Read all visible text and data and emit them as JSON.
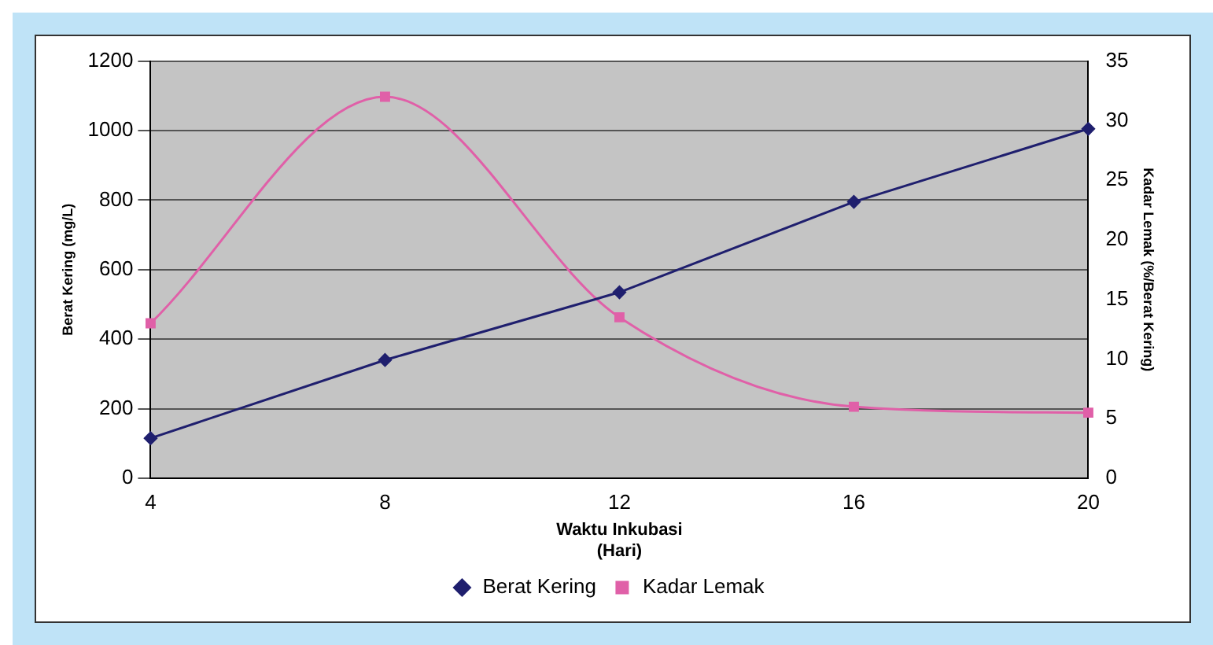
{
  "chart_data": {
    "type": "line",
    "categories": [
      "4",
      "8",
      "12",
      "16",
      "20"
    ],
    "xlabel": "Waktu Inkubasi\n(Hari)",
    "ylabel": "Berat Kering (mg/L)",
    "y2label": "Kadar Lemak (%/Berat Kering)",
    "series": [
      {
        "name": "Berat Kering",
        "color": "#1f1f6e",
        "values": [
          115,
          340,
          535,
          795,
          1005
        ],
        "marker": "diamond"
      },
      {
        "name": "Kadar Lemak",
        "color": "#e060a8",
        "values": [
          13,
          32,
          13.5,
          6,
          5.5
        ],
        "axis": "y2",
        "marker": "square"
      }
    ],
    "ylim": [
      0,
      1200
    ],
    "yticks": [
      0,
      200,
      400,
      600,
      800,
      1000,
      1200
    ],
    "y2lim": [
      0,
      35
    ],
    "y2ticks": [
      0,
      5,
      10,
      15,
      20,
      25,
      30,
      35
    ],
    "grid": "y",
    "legend": "bottom"
  }
}
